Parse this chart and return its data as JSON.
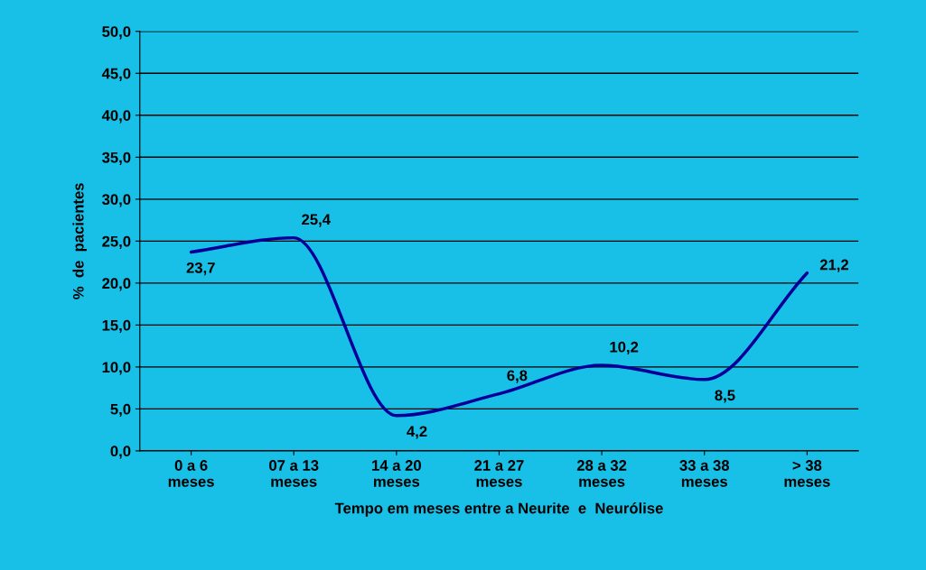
{
  "chart_data": {
    "type": "line",
    "xlabel": "Tempo em meses entre a Neurite  e  Neurólise",
    "ylabel": "%  de  pacientes",
    "categories": [
      "0 a 6\nmeses",
      "07 a 13\nmeses",
      "14 a 20\nmeses",
      "21 a 27\nmeses",
      "28 a 32\nmeses",
      "33 a 38\nmeses",
      "> 38\nmeses"
    ],
    "series": [
      {
        "color": "#000099",
        "values": [
          23.7,
          25.4,
          4.2,
          6.8,
          10.2,
          8.5,
          21.2
        ],
        "value_labels": [
          "23,7",
          "25,4",
          "4,2",
          "6,8",
          "10,2",
          "8,5",
          "21,2"
        ]
      }
    ],
    "ylim": [
      0,
      50
    ],
    "yticks": [
      {
        "value": 0,
        "label": "0,0"
      },
      {
        "value": 5,
        "label": "5,0"
      },
      {
        "value": 10,
        "label": "10,0"
      },
      {
        "value": 15,
        "label": "15,0"
      },
      {
        "value": 20,
        "label": "20,0"
      },
      {
        "value": 25,
        "label": "25,0"
      },
      {
        "value": 30,
        "label": "30,0"
      },
      {
        "value": 35,
        "label": "35,0"
      },
      {
        "value": 40,
        "label": "40,0"
      },
      {
        "value": 45,
        "label": "45,0"
      },
      {
        "value": 50,
        "label": "50,0"
      }
    ],
    "grid": "y",
    "legend": false,
    "marker": "none",
    "line_style": "solid"
  }
}
